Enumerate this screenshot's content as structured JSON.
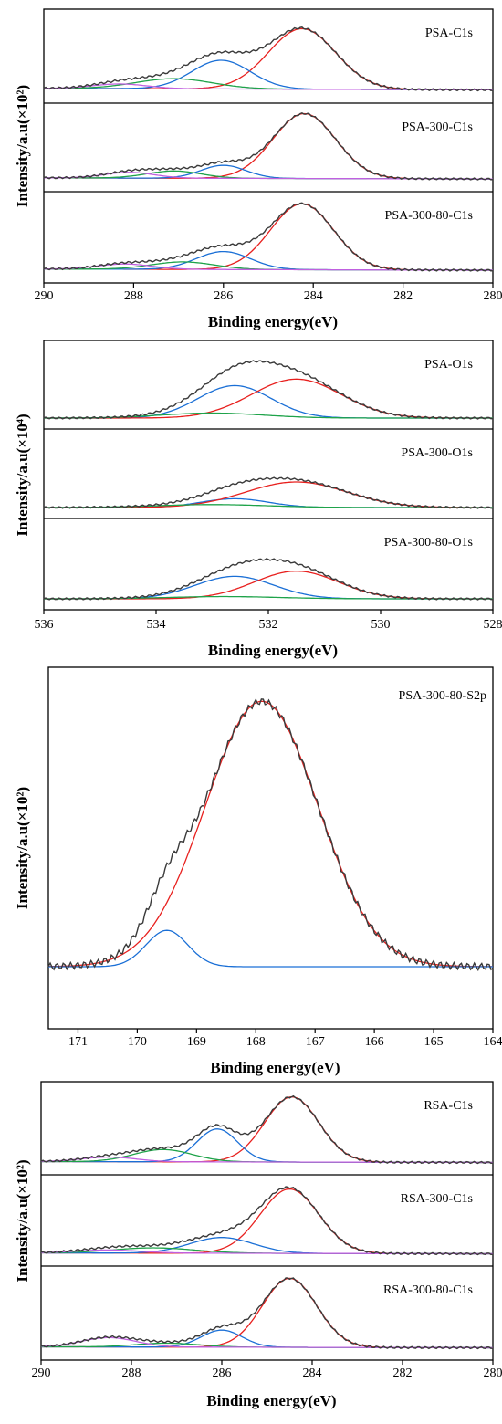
{
  "chart_data": [
    {
      "type": "line",
      "panel_id": "c1s-psa",
      "xlabel": "Binding energy(eV)",
      "ylabel": "Intensity/a.u(×10²)",
      "xlim": [
        290,
        280
      ],
      "xticks": [
        290,
        288,
        286,
        284,
        282,
        280
      ],
      "grid": false,
      "subplots": [
        {
          "label": "PSA-C1s",
          "background": 0.05,
          "peaks": [
            {
              "center": 284.25,
              "height": 0.78,
              "sigma": 0.75,
              "color": "#e8201e"
            },
            {
              "center": 286.05,
              "height": 0.37,
              "sigma": 0.65,
              "color": "#1a6fd6"
            },
            {
              "center": 287.1,
              "height": 0.13,
              "sigma": 0.85,
              "color": "#1fa34a"
            },
            {
              "center": 288.3,
              "height": 0.06,
              "sigma": 0.6,
              "color": "#c060e0"
            }
          ]
        },
        {
          "label": "PSA-300-C1s",
          "background": 0.04,
          "peaks": [
            {
              "center": 284.2,
              "height": 0.9,
              "sigma": 0.7,
              "color": "#e8201e"
            },
            {
              "center": 286.0,
              "height": 0.18,
              "sigma": 0.5,
              "color": "#1a6fd6"
            },
            {
              "center": 287.1,
              "height": 0.1,
              "sigma": 0.6,
              "color": "#1fa34a"
            },
            {
              "center": 288.1,
              "height": 0.08,
              "sigma": 0.55,
              "color": "#c060e0"
            }
          ]
        },
        {
          "label": "PSA-300-80-C1s",
          "background": 0.04,
          "peaks": [
            {
              "center": 284.25,
              "height": 0.88,
              "sigma": 0.7,
              "color": "#e8201e"
            },
            {
              "center": 286.0,
              "height": 0.24,
              "sigma": 0.6,
              "color": "#1a6fd6"
            },
            {
              "center": 286.9,
              "height": 0.1,
              "sigma": 0.7,
              "color": "#1fa34a"
            },
            {
              "center": 288.2,
              "height": 0.07,
              "sigma": 0.6,
              "color": "#c060e0"
            }
          ]
        }
      ]
    },
    {
      "type": "line",
      "panel_id": "o1s-psa",
      "xlabel": "Binding energy(eV)",
      "ylabel": "Intensity/a.u(×10⁴)",
      "xlim": [
        536,
        528
      ],
      "xticks": [
        536,
        534,
        532,
        530,
        528
      ],
      "grid": false,
      "subplots": [
        {
          "label": "PSA-O1s",
          "background": 0.0,
          "peaks": [
            {
              "center": 532.6,
              "height": 0.45,
              "sigma": 0.65,
              "color": "#1a6fd6"
            },
            {
              "center": 531.5,
              "height": 0.54,
              "sigma": 0.8,
              "color": "#e8201e"
            },
            {
              "center": 533.0,
              "height": 0.07,
              "sigma": 0.9,
              "color": "#1fa34a"
            }
          ]
        },
        {
          "label": "PSA-300-O1s",
          "background": 0.0,
          "peaks": [
            {
              "center": 532.6,
              "height": 0.12,
              "sigma": 0.6,
              "color": "#1a6fd6"
            },
            {
              "center": 531.5,
              "height": 0.35,
              "sigma": 0.9,
              "color": "#e8201e"
            },
            {
              "center": 533.0,
              "height": 0.04,
              "sigma": 1.0,
              "color": "#1fa34a"
            }
          ]
        },
        {
          "label": "PSA-300-80-O1s",
          "background": 0.0,
          "peaks": [
            {
              "center": 532.6,
              "height": 0.3,
              "sigma": 0.7,
              "color": "#1a6fd6"
            },
            {
              "center": 531.5,
              "height": 0.37,
              "sigma": 0.75,
              "color": "#e8201e"
            },
            {
              "center": 532.8,
              "height": 0.03,
              "sigma": 1.0,
              "color": "#1fa34a"
            }
          ]
        }
      ]
    },
    {
      "type": "line",
      "panel_id": "s2p-psa",
      "xlabel": "Binding energy(eV)",
      "ylabel": "Intensity/a.u(×10²)",
      "xlim": [
        171.5,
        164
      ],
      "xticks": [
        171,
        170,
        169,
        168,
        167,
        166,
        165,
        164
      ],
      "grid": false,
      "subplots": [
        {
          "label": "PSA-300-80-S2p",
          "background": 0.0,
          "peaks": [
            {
              "center": 167.9,
              "height": 0.95,
              "sigma": 0.95,
              "color": "#e8201e"
            },
            {
              "center": 169.5,
              "height": 0.13,
              "sigma": 0.35,
              "color": "#1a6fd6"
            }
          ]
        }
      ]
    },
    {
      "type": "line",
      "panel_id": "c1s-rsa",
      "xlabel": "Binding energy(eV)",
      "ylabel": "Intensity/a.u(×10²)",
      "xlim": [
        290,
        280
      ],
      "xticks": [
        290,
        288,
        286,
        284,
        282,
        280
      ],
      "grid": false,
      "subplots": [
        {
          "label": "RSA-C1s",
          "background": 0.03,
          "peaks": [
            {
              "center": 284.45,
              "height": 0.85,
              "sigma": 0.6,
              "color": "#e8201e"
            },
            {
              "center": 286.1,
              "height": 0.43,
              "sigma": 0.45,
              "color": "#1a6fd6"
            },
            {
              "center": 287.3,
              "height": 0.16,
              "sigma": 0.65,
              "color": "#1fa34a"
            },
            {
              "center": 288.5,
              "height": 0.06,
              "sigma": 0.6,
              "color": "#c060e0"
            }
          ]
        },
        {
          "label": "RSA-300-C1s",
          "background": 0.03,
          "peaks": [
            {
              "center": 284.5,
              "height": 0.86,
              "sigma": 0.65,
              "color": "#e8201e"
            },
            {
              "center": 286.0,
              "height": 0.21,
              "sigma": 0.7,
              "color": "#1a6fd6"
            },
            {
              "center": 287.5,
              "height": 0.07,
              "sigma": 0.9,
              "color": "#1fa34a"
            },
            {
              "center": 288.5,
              "height": 0.04,
              "sigma": 0.7,
              "color": "#c060e0"
            }
          ]
        },
        {
          "label": "RSA-300-80-C1s",
          "background": 0.03,
          "peaks": [
            {
              "center": 284.5,
              "height": 0.89,
              "sigma": 0.6,
              "color": "#e8201e"
            },
            {
              "center": 286.0,
              "height": 0.22,
              "sigma": 0.45,
              "color": "#1a6fd6"
            },
            {
              "center": 287.2,
              "height": 0.05,
              "sigma": 0.7,
              "color": "#1fa34a"
            },
            {
              "center": 288.5,
              "height": 0.12,
              "sigma": 0.6,
              "color": "#c060e0"
            }
          ]
        }
      ]
    }
  ]
}
